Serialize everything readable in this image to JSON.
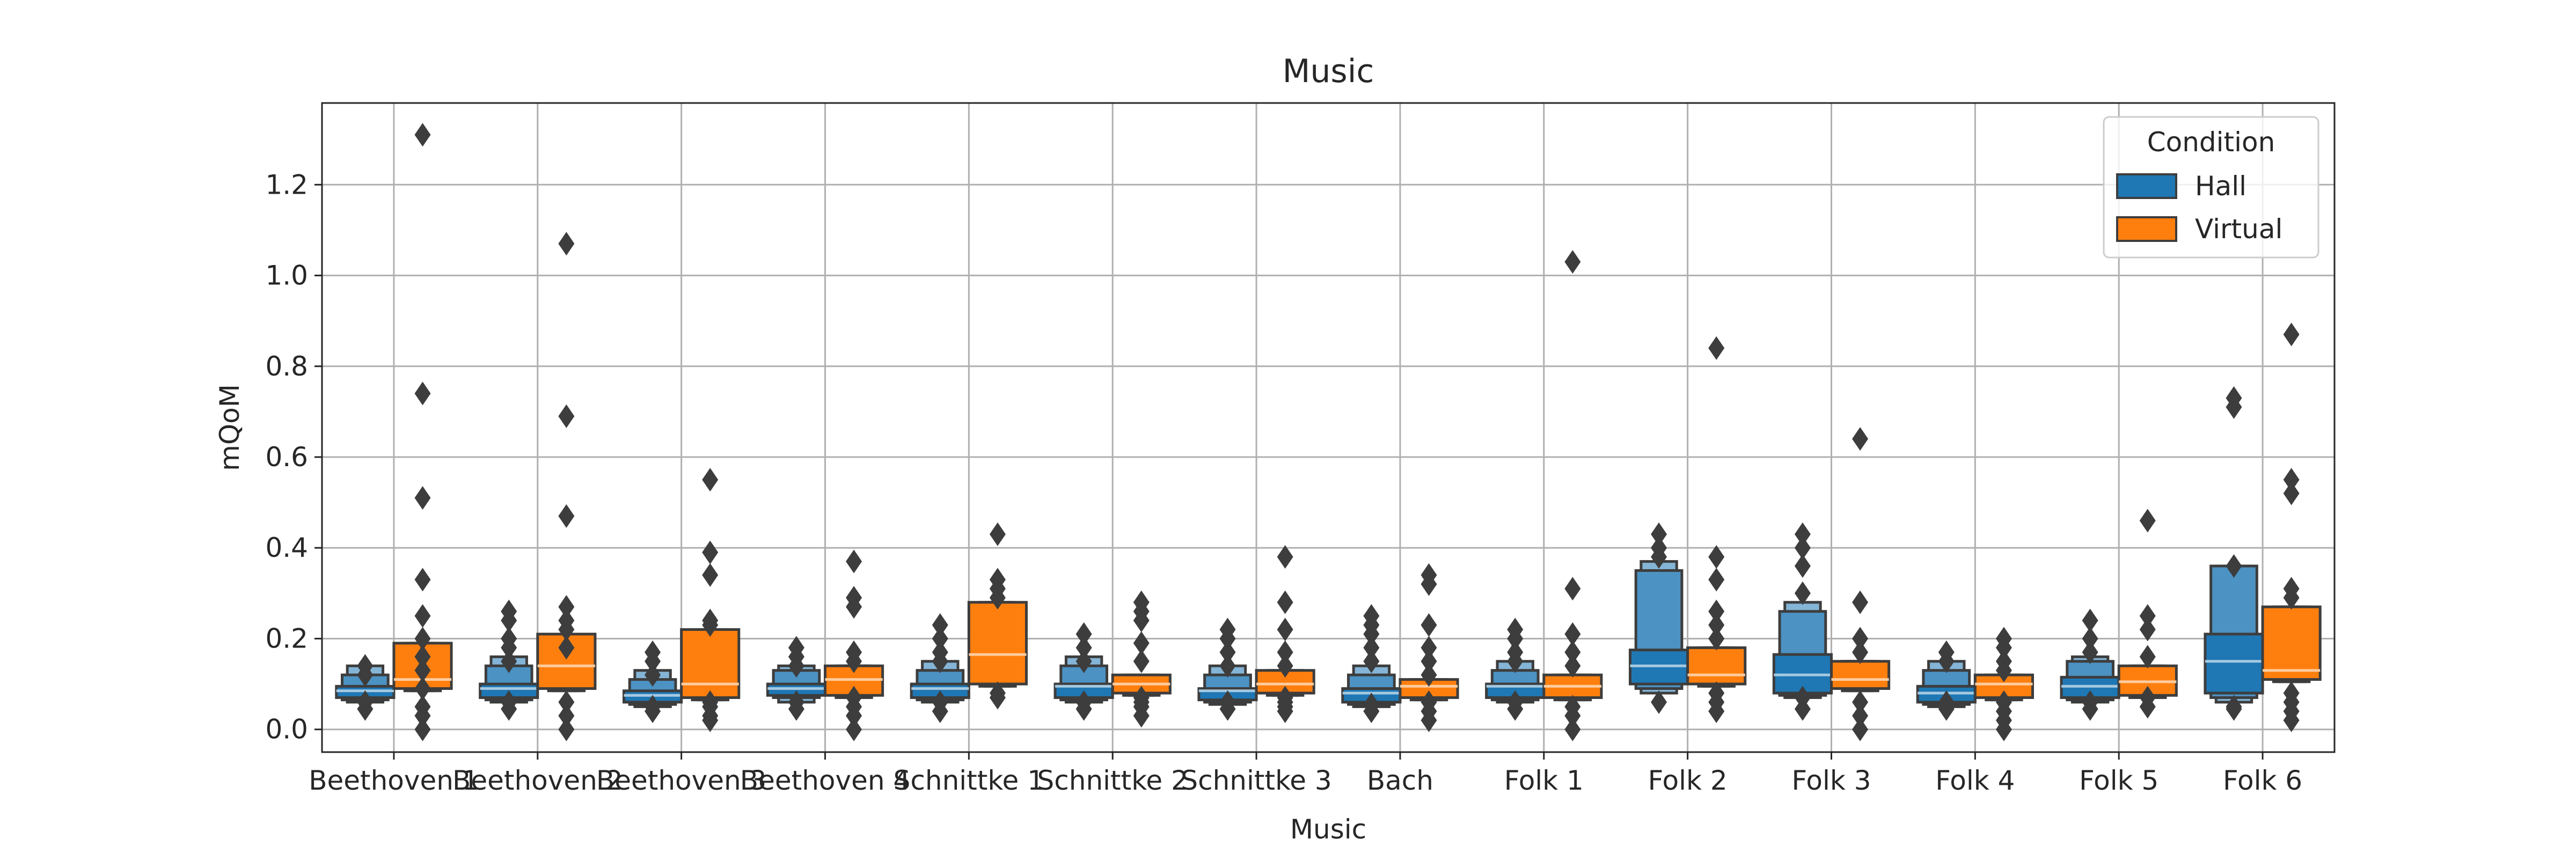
{
  "chart_data": {
    "type": "boxen",
    "title": "Music",
    "xlabel": "Music",
    "ylabel": "mQoM",
    "ylim": [
      -0.05,
      1.38
    ],
    "yticks": [
      0.0,
      0.2,
      0.4,
      0.6,
      0.8,
      1.0,
      1.2
    ],
    "ytick_labels": [
      "0.0",
      "0.2",
      "0.4",
      "0.6",
      "0.8",
      "1.0",
      "1.2"
    ],
    "grid": true,
    "legend": {
      "title": "Condition",
      "placement": "top-right",
      "entries": [
        "Hall",
        "Virtual"
      ]
    },
    "categories": [
      "Beethoven 1",
      "Beethoven 2",
      "Beethoven 3",
      "Beethoven 4",
      "Schnittke 1",
      "Schnittke 2",
      "Schnittke 3",
      "Bach",
      "Folk 1",
      "Folk 2",
      "Folk 3",
      "Folk 4",
      "Folk 5",
      "Folk 6"
    ],
    "series": [
      {
        "name": "Hall",
        "color": "#1f77b4",
        "boxes": [
          {
            "q": [
              0.07,
              0.08,
              0.095,
              0.11,
              0.13
            ],
            "w": [
              0.065,
              0.06,
              0.12,
              0.14
            ],
            "median": 0.085,
            "outliers": [
              0.045,
              0.06,
              0.12,
              0.14
            ]
          },
          {
            "q": [
              0.07,
              0.085,
              0.1,
              0.115,
              0.13
            ],
            "w": [
              0.065,
              0.06,
              0.14,
              0.16
            ],
            "median": 0.09,
            "outliers": [
              0.045,
              0.06,
              0.15,
              0.18,
              0.2,
              0.24,
              0.26
            ]
          },
          {
            "q": [
              0.06,
              0.07,
              0.085,
              0.095,
              0.1
            ],
            "w": [
              0.055,
              0.05,
              0.11,
              0.13
            ],
            "median": 0.075,
            "outliers": [
              0.04,
              0.05,
              0.12,
              0.15,
              0.17
            ]
          },
          {
            "q": [
              0.075,
              0.085,
              0.1,
              0.11,
              0.12
            ],
            "w": [
              0.07,
              0.06,
              0.13,
              0.14
            ],
            "median": 0.09,
            "outliers": [
              0.045,
              0.06,
              0.14,
              0.16,
              0.18
            ]
          },
          {
            "q": [
              0.07,
              0.085,
              0.1,
              0.11,
              0.12
            ],
            "w": [
              0.065,
              0.06,
              0.13,
              0.15
            ],
            "median": 0.09,
            "outliers": [
              0.04,
              0.06,
              0.15,
              0.17,
              0.2,
              0.23
            ]
          },
          {
            "q": [
              0.07,
              0.085,
              0.1,
              0.115,
              0.125
            ],
            "w": [
              0.065,
              0.06,
              0.14,
              0.16
            ],
            "median": 0.095,
            "outliers": [
              0.045,
              0.06,
              0.15,
              0.18,
              0.21
            ]
          },
          {
            "q": [
              0.065,
              0.078,
              0.09,
              0.1,
              0.11
            ],
            "w": [
              0.06,
              0.055,
              0.12,
              0.14
            ],
            "median": 0.085,
            "outliers": [
              0.045,
              0.06,
              0.14,
              0.17,
              0.2,
              0.22
            ]
          },
          {
            "q": [
              0.06,
              0.075,
              0.09,
              0.1,
              0.11
            ],
            "w": [
              0.055,
              0.05,
              0.12,
              0.14
            ],
            "median": 0.08,
            "outliers": [
              0.04,
              0.055,
              0.15,
              0.18,
              0.21,
              0.23,
              0.25
            ]
          },
          {
            "q": [
              0.07,
              0.085,
              0.1,
              0.115,
              0.125
            ],
            "w": [
              0.065,
              0.06,
              0.13,
              0.15
            ],
            "median": 0.095,
            "outliers": [
              0.045,
              0.06,
              0.15,
              0.17,
              0.2,
              0.22
            ]
          },
          {
            "q": [
              0.1,
              0.12,
              0.175,
              0.25,
              0.33
            ],
            "w": [
              0.09,
              0.08,
              0.35,
              0.37
            ],
            "median": 0.14,
            "outliers": [
              0.06,
              0.38,
              0.4,
              0.43
            ]
          },
          {
            "q": [
              0.08,
              0.1,
              0.165,
              0.2,
              0.24
            ],
            "w": [
              0.075,
              0.07,
              0.26,
              0.28
            ],
            "median": 0.12,
            "outliers": [
              0.045,
              0.07,
              0.3,
              0.36,
              0.4,
              0.43
            ]
          },
          {
            "q": [
              0.06,
              0.075,
              0.095,
              0.105,
              0.115
            ],
            "w": [
              0.055,
              0.05,
              0.13,
              0.15
            ],
            "median": 0.08,
            "outliers": [
              0.045,
              0.06,
              0.15,
              0.17
            ]
          },
          {
            "q": [
              0.07,
              0.085,
              0.115,
              0.13,
              0.14
            ],
            "w": [
              0.065,
              0.06,
              0.15,
              0.16
            ],
            "median": 0.095,
            "outliers": [
              0.045,
              0.06,
              0.17,
              0.2,
              0.24
            ]
          },
          {
            "q": [
              0.08,
              0.12,
              0.21,
              0.26,
              0.33
            ],
            "w": [
              0.07,
              0.06,
              0.36,
              0.36
            ],
            "median": 0.15,
            "outliers": [
              0.045,
              0.05,
              0.36,
              0.71,
              0.73
            ]
          }
        ]
      },
      {
        "name": "Virtual",
        "color": "#ff7f0e",
        "boxes": [
          {
            "q": [
              0.09,
              0.19,
              0.19,
              0.19,
              0.19
            ],
            "w": [
              0.085,
              0.085,
              0.19,
              0.19
            ],
            "median": 0.11,
            "outliers": [
              0.0,
              0.03,
              0.05,
              0.09,
              0.13,
              0.16,
              0.2,
              0.25,
              0.33,
              0.51,
              0.74,
              1.31
            ]
          },
          {
            "q": [
              0.09,
              0.21,
              0.21,
              0.21,
              0.21
            ],
            "w": [
              0.085,
              0.085,
              0.21,
              0.21
            ],
            "median": 0.14,
            "outliers": [
              0.0,
              0.03,
              0.06,
              0.18,
              0.22,
              0.24,
              0.27,
              0.47,
              0.69,
              1.07
            ]
          },
          {
            "q": [
              0.07,
              0.22,
              0.22,
              0.22,
              0.22
            ],
            "w": [
              0.065,
              0.065,
              0.22,
              0.22
            ],
            "median": 0.1,
            "outliers": [
              0.02,
              0.03,
              0.05,
              0.06,
              0.23,
              0.24,
              0.34,
              0.39,
              0.55
            ]
          },
          {
            "q": [
              0.075,
              0.14,
              0.14,
              0.14,
              0.14
            ],
            "w": [
              0.07,
              0.07,
              0.14,
              0.14
            ],
            "median": 0.11,
            "outliers": [
              0.0,
              0.03,
              0.05,
              0.07,
              0.15,
              0.17,
              0.27,
              0.29,
              0.37
            ]
          },
          {
            "q": [
              0.1,
              0.28,
              0.28,
              0.28,
              0.28
            ],
            "w": [
              0.095,
              0.095,
              0.28,
              0.28
            ],
            "median": 0.165,
            "outliers": [
              0.07,
              0.08,
              0.29,
              0.31,
              0.33,
              0.43
            ]
          },
          {
            "q": [
              0.08,
              0.12,
              0.12,
              0.12,
              0.12
            ],
            "w": [
              0.075,
              0.075,
              0.12,
              0.12
            ],
            "median": 0.1,
            "outliers": [
              0.03,
              0.05,
              0.06,
              0.07,
              0.15,
              0.19,
              0.24,
              0.26,
              0.28
            ]
          },
          {
            "q": [
              0.08,
              0.13,
              0.13,
              0.13,
              0.13
            ],
            "w": [
              0.075,
              0.075,
              0.13,
              0.13
            ],
            "median": 0.1,
            "outliers": [
              0.04,
              0.05,
              0.06,
              0.07,
              0.14,
              0.17,
              0.22,
              0.28,
              0.38
            ]
          },
          {
            "q": [
              0.07,
              0.11,
              0.11,
              0.11,
              0.11
            ],
            "w": [
              0.065,
              0.065,
              0.11,
              0.11
            ],
            "median": 0.095,
            "outliers": [
              0.02,
              0.04,
              0.06,
              0.12,
              0.15,
              0.18,
              0.23,
              0.32,
              0.34
            ]
          },
          {
            "q": [
              0.07,
              0.12,
              0.12,
              0.12,
              0.12
            ],
            "w": [
              0.065,
              0.065,
              0.12,
              0.12
            ],
            "median": 0.095,
            "outliers": [
              0.0,
              0.03,
              0.05,
              0.14,
              0.17,
              0.21,
              0.31,
              1.03
            ]
          },
          {
            "q": [
              0.1,
              0.18,
              0.18,
              0.18,
              0.18
            ],
            "w": [
              0.095,
              0.095,
              0.18,
              0.18
            ],
            "median": 0.12,
            "outliers": [
              0.04,
              0.06,
              0.08,
              0.2,
              0.23,
              0.26,
              0.33,
              0.38,
              0.84
            ]
          },
          {
            "q": [
              0.09,
              0.15,
              0.15,
              0.15,
              0.15
            ],
            "w": [
              0.085,
              0.085,
              0.15,
              0.15
            ],
            "median": 0.11,
            "outliers": [
              0.0,
              0.03,
              0.06,
              0.17,
              0.2,
              0.28,
              0.64
            ]
          },
          {
            "q": [
              0.07,
              0.12,
              0.12,
              0.12,
              0.12
            ],
            "w": [
              0.065,
              0.065,
              0.12,
              0.12
            ],
            "median": 0.1,
            "outliers": [
              0.0,
              0.02,
              0.04,
              0.06,
              0.13,
              0.15,
              0.18,
              0.2
            ]
          },
          {
            "q": [
              0.075,
              0.14,
              0.14,
              0.14,
              0.14
            ],
            "w": [
              0.07,
              0.07,
              0.14,
              0.14
            ],
            "median": 0.105,
            "outliers": [
              0.05,
              0.07,
              0.16,
              0.22,
              0.25,
              0.46
            ]
          },
          {
            "q": [
              0.11,
              0.27,
              0.27,
              0.27,
              0.27
            ],
            "w": [
              0.105,
              0.105,
              0.27,
              0.27
            ],
            "median": 0.13,
            "outliers": [
              0.02,
              0.04,
              0.06,
              0.08,
              0.29,
              0.31,
              0.52,
              0.55,
              0.87
            ]
          }
        ]
      }
    ]
  }
}
